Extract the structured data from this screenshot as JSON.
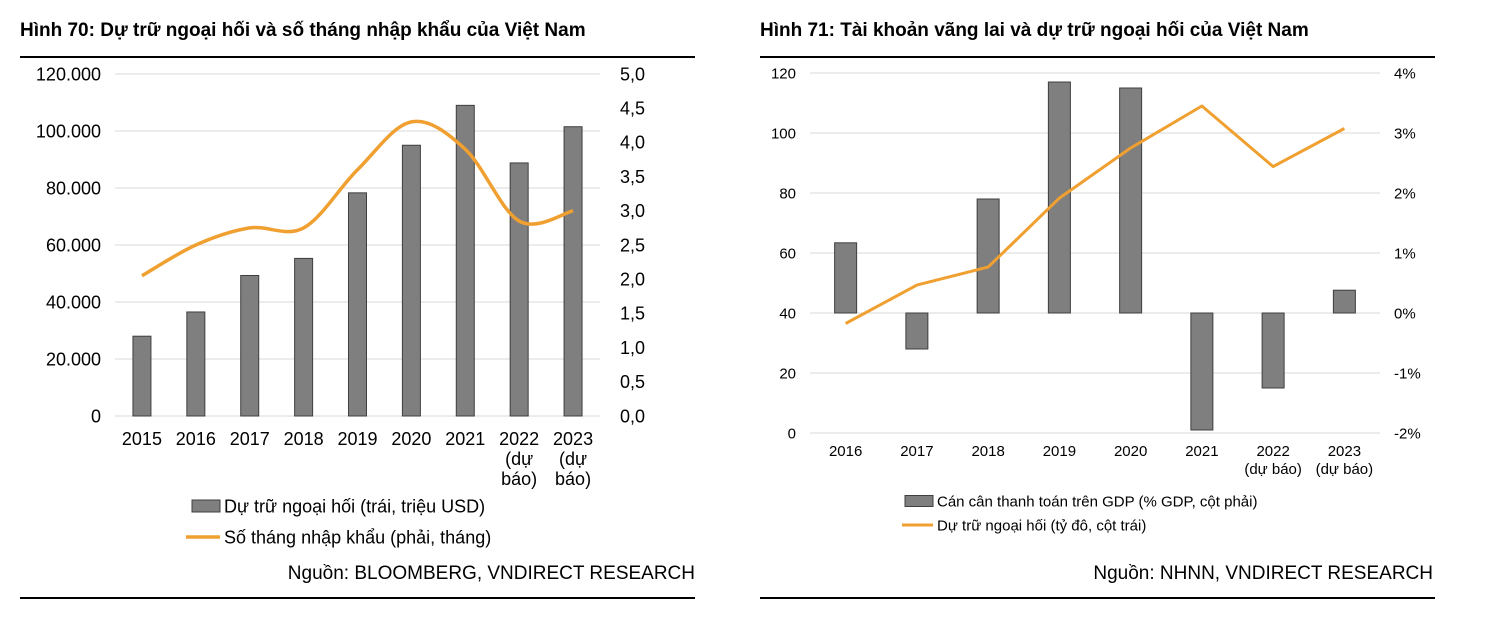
{
  "chart_data": [
    {
      "type": "bar",
      "title": "Hình 70: Dự trữ ngoại hối và số tháng nhập khẩu của Việt Nam",
      "source": "Nguồn: BLOOMBERG, VNDIRECT RESEARCH",
      "categories": [
        [
          "2015"
        ],
        [
          "2016"
        ],
        [
          "2017"
        ],
        [
          "2018"
        ],
        [
          "2019"
        ],
        [
          "2020"
        ],
        [
          "2021"
        ],
        [
          "2022",
          "(dự",
          "báo)"
        ],
        [
          "2023",
          "(dự",
          "báo)"
        ]
      ],
      "series": [
        {
          "name": "Dự trữ ngoại hối (trái, triệu USD)",
          "kind": "bar",
          "axis": "left",
          "color": "#7f7f7f",
          "values": [
            28000,
            36500,
            49300,
            55300,
            78300,
            95000,
            109000,
            88800,
            101500
          ]
        },
        {
          "name": "Số tháng nhập khẩu (phải, tháng)",
          "kind": "line",
          "axis": "right",
          "color": "#f0a030",
          "smooth": true,
          "values": [
            2.05,
            2.5,
            2.75,
            2.75,
            3.6,
            4.3,
            3.9,
            2.85,
            3.0
          ]
        }
      ],
      "ylim": [
        0,
        120000
      ],
      "yticks": [
        "0",
        "20.000",
        "40.000",
        "60.000",
        "80.000",
        "100.000",
        "120.000"
      ],
      "y2lim": [
        0,
        5
      ],
      "y2ticks": [
        "0,0",
        "0,5",
        "1,0",
        "1,5",
        "2,0",
        "2,5",
        "3,0",
        "3,5",
        "4,0",
        "4,5",
        "5,0"
      ],
      "grid": true,
      "legend": "bottom"
    },
    {
      "type": "bar",
      "title": "Hình 71: Tài khoản vãng lai và dự trữ ngoại hối của Việt Nam",
      "source": "Nguồn: NHNN, VNDIRECT RESEARCH",
      "categories": [
        [
          "2016"
        ],
        [
          "2017"
        ],
        [
          "2018"
        ],
        [
          "2019"
        ],
        [
          "2020"
        ],
        [
          "2021"
        ],
        [
          "2022",
          "(dự báo)"
        ],
        [
          "2023",
          "(dự báo)"
        ]
      ],
      "series": [
        {
          "name": "Cán cân thanh toán trên GDP (% GDP, cột phải)",
          "kind": "bar",
          "axis": "right",
          "color": "#7f7f7f",
          "values": [
            1.17,
            -0.6,
            1.9,
            3.85,
            3.75,
            -1.95,
            -1.25,
            0.38
          ]
        },
        {
          "name": "Dự trữ ngoại hối (tỷ đô, cột trái)",
          "kind": "line",
          "axis": "left",
          "color": "#f0a030",
          "smooth": false,
          "values": [
            36.5,
            49.3,
            55.3,
            78.3,
            95,
            109,
            88.8,
            101.5
          ]
        }
      ],
      "ylim": [
        0,
        120
      ],
      "yticks": [
        "0",
        "20",
        "40",
        "60",
        "80",
        "100",
        "120"
      ],
      "y2lim": [
        -2,
        4
      ],
      "y2ticks": [
        "-2%",
        "-1%",
        "0%",
        "1%",
        "2%",
        "3%",
        "4%"
      ],
      "grid": true,
      "legend": "bottom"
    }
  ]
}
